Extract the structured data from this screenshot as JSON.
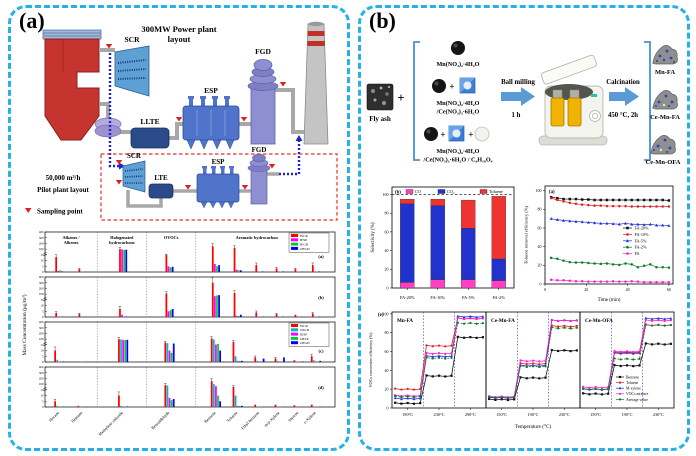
{
  "panels": {
    "a_label": "(a)",
    "b_label": "(b)"
  },
  "plant": {
    "title_line1": "300MW Power plant",
    "title_line2": "layout",
    "scr": "SCR",
    "llte": "LLTE",
    "lte": "LTE",
    "esp": "ESP",
    "fgd": "FGD",
    "flow_rate": "50,000 m³/h",
    "pilot_label": "Pilot plant layout",
    "sampling_point": "Sampling point"
  },
  "flow": {
    "fly_ash": "Fly ash",
    "plus": "+",
    "mix1": "Mn(NO₃)₂·4H₂O",
    "mix2_line1": "Mn(NO₃)₂·4H₂O",
    "mix2_line2": "/Ce(NO₃)₃·6H₂O",
    "mix3_line1": "Mn(NO₃)₂·4H₂O",
    "mix3_line2": "/Ce(NO₃)₃·6H₂O / C₆H₁₀O₄",
    "ball_milling": "Ball milling",
    "milling_time": "1 h",
    "calcination": "Calcination",
    "calcination_conditions": "450 °C, 2h",
    "product1": "Mn-FA",
    "product2": "Ce-Mn-FA",
    "product3": "Ce-Mn-OFA"
  },
  "chart_data": [
    {
      "id": "voc_mass_concentration",
      "type": "bar",
      "ylabel": "Mass Concentration (μg/m³)",
      "yticks": [
        400,
        300,
        200,
        100,
        15,
        10,
        5,
        0
      ],
      "broken_axis": true,
      "categories": [
        "Hexane",
        "Heptane",
        "Methylene chloride",
        "Benzaldehyde",
        "Benzene",
        "Toluene",
        "Ethyl benzene",
        "m/p-Xylene",
        "Styrene",
        "o-Xylene"
      ],
      "cat_fracs": [
        0.05,
        0.13,
        0.27,
        0.43,
        0.59,
        0.665,
        0.74,
        0.81,
        0.875,
        0.935
      ],
      "sep_fracs": [
        0.18,
        0.35,
        0.52
      ],
      "group_headers": [
        {
          "lines": [
            "Alkanes /",
            "Alkenes"
          ],
          "frac": 0.09
        },
        {
          "lines": [
            "Halogenated",
            "hydrocarbons"
          ],
          "frac": 0.265
        },
        {
          "lines": [
            "OVOCs"
          ],
          "frac": 0.435
        },
        {
          "lines": [
            "Aromatic hydrocarbon"
          ],
          "frac": 0.73
        }
      ],
      "subplots": [
        {
          "label": "(a)",
          "legend": true,
          "series": [
            {
              "name": "ISCR",
              "color": "#ff0000",
              "values": [
                13,
                2.5,
                100,
                16,
                150,
                120,
                6,
                3,
                2.5,
                6
              ]
            },
            {
              "name": "IESP",
              "color": "#ff00ff",
              "values": [
                1,
                0.3,
                95,
                5,
                7,
                2,
                0.5,
                0.5,
                0.3,
                0.5
              ]
            },
            {
              "name": "IFGD",
              "color": "#00cc33",
              "values": [
                1.5,
                0.2,
                90,
                4,
                5,
                1.5,
                0.4,
                0.4,
                0.3,
                0.4
              ]
            },
            {
              "name": "OFGD",
              "color": "#0000ff",
              "values": [
                0.5,
                0.2,
                92,
                4.5,
                6,
                1.5,
                0.5,
                0.5,
                0.3,
                0.5
              ]
            }
          ]
        },
        {
          "label": "(b)",
          "legend": false,
          "series": [
            {
              "name": "ISCR",
              "color": "#ff0000",
              "values": [
                3.5,
                2.5,
                7,
                110,
                300,
                120,
                4,
                2.5,
                2,
                3
              ]
            },
            {
              "name": "IESP",
              "color": "#ff00ff",
              "values": [
                0.3,
                0.2,
                2,
                5,
                70,
                1,
                0.3,
                0.3,
                0.2,
                0.3
              ]
            },
            {
              "name": "IFGD",
              "color": "#00cc33",
              "values": [
                0.3,
                0.2,
                0.5,
                6,
                80,
                1,
                0.3,
                0.3,
                0.2,
                0.3
              ]
            },
            {
              "name": "OFGD",
              "color": "#0000ff",
              "values": [
                0.3,
                0.2,
                0.5,
                7,
                85,
                2,
                0.4,
                0.3,
                0.2,
                0.3
              ]
            }
          ]
        },
        {
          "label": "(c)",
          "legend": true,
          "series": [
            {
              "name": "ISCR",
              "color": "#ff0000",
              "values": [
                10,
                0.5,
                100,
                50,
                110,
                60,
                4,
                3,
                1.5,
                5
              ]
            },
            {
              "name": "OSCR",
              "color": "#00b8d0",
              "values": [
                2,
                0.3,
                95,
                40,
                95,
                5,
                1,
                1,
                0.5,
                1.5
              ]
            },
            {
              "name": "IESP",
              "color": "#ff00ff",
              "values": [
                0.5,
                0.2,
                90,
                10,
                20,
                1,
                0.5,
                0.5,
                0.3,
                0.5
              ]
            },
            {
              "name": "OESP",
              "color": "#00cc33",
              "values": [
                0.5,
                0.2,
                88,
                8,
                30,
                1,
                0.5,
                0.5,
                0.3,
                0.5
              ]
            },
            {
              "name": "OFGD",
              "color": "#0000ff",
              "values": [
                0.5,
                0.2,
                90,
                35,
                10,
                1,
                3,
                4,
                0.5,
                1
              ]
            }
          ]
        },
        {
          "label": "(d)",
          "legend": false,
          "series": [
            {
              "name": "ISCR",
              "color": "#ff0000",
              "values": [
                5,
                1,
                10,
                85,
                150,
                60,
                2,
                2,
                1.5,
                2
              ]
            },
            {
              "name": "OSCR",
              "color": "#00b8d0",
              "values": [
                1,
                0.3,
                1,
                80,
                100,
                10,
                0.5,
                0.5,
                0.3,
                0.5
              ]
            },
            {
              "name": "IESP",
              "color": "#ff00ff",
              "values": [
                0.3,
                0.2,
                0.5,
                8,
                70,
                1,
                0.3,
                0.3,
                0.2,
                0.3
              ]
            },
            {
              "name": "OESP",
              "color": "#00cc33",
              "values": [
                0.3,
                0.2,
                0.5,
                6,
                10,
                1,
                0.3,
                0.3,
                0.2,
                0.3
              ]
            },
            {
              "name": "OFGD",
              "color": "#0000ff",
              "values": [
                0.3,
                0.2,
                0.5,
                7,
                5,
                1,
                0.3,
                0.3,
                0.2,
                0.3
              ]
            }
          ]
        }
      ]
    },
    {
      "id": "selectivity",
      "type": "bar",
      "stacked": true,
      "panel_label": "(b)",
      "ylabel": "Selectivity (%)",
      "ylim": [
        0,
        108
      ],
      "yticks": [
        0,
        20,
        40,
        60,
        80,
        100
      ],
      "dashed_line_y": 100,
      "categories": [
        "FA-20%",
        "FA-10%",
        "FA-5%",
        "FA-2%"
      ],
      "series": [
        {
          "name": "CO",
          "color": "#ff40c0",
          "values": [
            6,
            9,
            9,
            8
          ]
        },
        {
          "name": "CO₂",
          "color": "#2233cc",
          "values": [
            84,
            79,
            55,
            23
          ]
        },
        {
          "name": "Toluene",
          "color": "#ee3333",
          "values": [
            5,
            7,
            30,
            67
          ]
        }
      ]
    },
    {
      "id": "toluene_removal",
      "type": "line",
      "panel_label": "(a)",
      "xlabel": "Time (min)",
      "ylabel": "Toluene removal efficiency (%)",
      "xlim": [
        0,
        62
      ],
      "xticks": [
        0,
        20,
        40,
        60
      ],
      "ylim": [
        0,
        105
      ],
      "yticks": [
        0,
        20,
        40,
        60,
        80,
        100
      ],
      "x": [
        3,
        6,
        9,
        12,
        15,
        18,
        21,
        24,
        27,
        30,
        33,
        36,
        39,
        42,
        45,
        48,
        51,
        54,
        57,
        60
      ],
      "series": [
        {
          "name": "FA-20%",
          "color": "#111111",
          "marker": "s",
          "values": [
            93,
            92,
            91,
            91,
            91,
            90.5,
            90.5,
            90,
            90,
            90,
            90,
            90,
            90,
            90,
            90,
            90,
            90,
            90,
            90,
            89.5
          ]
        },
        {
          "name": "FA-10%",
          "color": "#e02020",
          "marker": "c",
          "values": [
            92,
            90,
            88.5,
            87,
            86,
            85,
            84.5,
            84,
            84,
            83.5,
            83.5,
            83.5,
            83.5,
            83,
            83,
            83,
            83,
            83,
            83,
            83
          ]
        },
        {
          "name": "FA-5%",
          "color": "#2233dd",
          "marker": "t",
          "values": [
            70,
            69,
            68,
            67.5,
            67,
            66.5,
            66,
            65.5,
            65,
            65,
            64.5,
            64,
            65,
            64,
            64,
            63.5,
            64,
            63,
            63,
            62.5
          ]
        },
        {
          "name": "FA-2%",
          "color": "#0d7a2d",
          "marker": "c",
          "values": [
            28,
            27,
            25,
            23.5,
            23,
            23,
            22.5,
            22,
            21.5,
            22,
            21,
            20.5,
            22,
            21,
            18,
            19.5,
            21,
            18,
            18,
            17.5
          ]
        },
        {
          "name": "FA",
          "color": "#ff22cc",
          "marker": "c",
          "values": [
            4.5,
            4,
            4,
            3.5,
            3,
            3,
            2.5,
            2.5,
            2.5,
            2.5,
            3,
            2.5,
            2.5,
            3,
            2.5,
            2,
            2,
            2,
            2,
            2
          ]
        }
      ]
    },
    {
      "id": "vocs_conversion",
      "type": "line",
      "stepped_plateaus": true,
      "panel_label": "(e)",
      "xlabel": "Temperature (°C)",
      "ylabel": "VOCs conversion efficiency (%)",
      "ylim": [
        0,
        102
      ],
      "yticks": [
        0,
        20,
        40,
        60,
        80,
        100
      ],
      "panels": [
        {
          "title": "Mn-FA",
          "temps": [
            "190°C",
            "230°C",
            "290°C"
          ],
          "legend": false,
          "series": [
            {
              "name": "Benzene",
              "color": "#111111",
              "marker": "s",
              "dashed": false,
              "values": [
                5,
                34,
                75
              ]
            },
            {
              "name": "Toluene",
              "color": "#e02020",
              "marker": "c",
              "dashed": false,
              "values": [
                20,
                66,
                95
              ]
            },
            {
              "name": "M-xylene",
              "color": "#2233dd",
              "marker": "t",
              "dashed": false,
              "values": [
                10,
                55,
                97
              ]
            },
            {
              "name": "VOCs mixture",
              "color": "#ff22cc",
              "marker": "c",
              "dashed": false,
              "values": [
                13,
                58,
                95
              ]
            },
            {
              "name": "Average value",
              "color": "#0d7a2d",
              "marker": "c",
              "dashed": true,
              "values": [
                12,
                53,
                90
              ]
            }
          ]
        },
        {
          "title": "Ce-Mn-FA",
          "temps": [
            "150°C",
            "190°C",
            "230°C"
          ],
          "legend": false,
          "series": [
            {
              "name": "Benzene",
              "color": "#111111",
              "marker": "s",
              "dashed": false,
              "values": [
                9,
                32,
                61
              ]
            },
            {
              "name": "Toluene",
              "color": "#e02020",
              "marker": "c",
              "dashed": false,
              "values": [
                11,
                47,
                87
              ]
            },
            {
              "name": "M-xylene",
              "color": "#2233dd",
              "marker": "t",
              "dashed": false,
              "values": [
                11,
                45,
                93
              ]
            },
            {
              "name": "VOCs mixture",
              "color": "#ff22cc",
              "marker": "c",
              "dashed": false,
              "values": [
                12,
                50,
                93
              ]
            },
            {
              "name": "Average value",
              "color": "#0d7a2d",
              "marker": "c",
              "dashed": true,
              "values": [
                11,
                44,
                85
              ]
            }
          ]
        },
        {
          "title": "Ce-Mn-OFA",
          "temps": [
            "150°C",
            "190°C",
            "230°C"
          ],
          "legend": true,
          "series": [
            {
              "name": "Benzene",
              "color": "#111111",
              "marker": "s",
              "dashed": false,
              "values": [
                15,
                45,
                68
              ]
            },
            {
              "name": "Toluene",
              "color": "#e02020",
              "marker": "c",
              "dashed": false,
              "values": [
                20,
                58,
                88
              ]
            },
            {
              "name": "M-xylene",
              "color": "#2233dd",
              "marker": "t",
              "dashed": false,
              "values": [
                20,
                59,
                95
              ]
            },
            {
              "name": "VOCs mixture",
              "color": "#ff22cc",
              "marker": "c",
              "dashed": false,
              "values": [
                22,
                60,
                93
              ]
            },
            {
              "name": "Average value",
              "color": "#0d7a2d",
              "marker": "c",
              "dashed": true,
              "values": [
                20,
                52,
                88
              ]
            }
          ]
        }
      ]
    }
  ]
}
